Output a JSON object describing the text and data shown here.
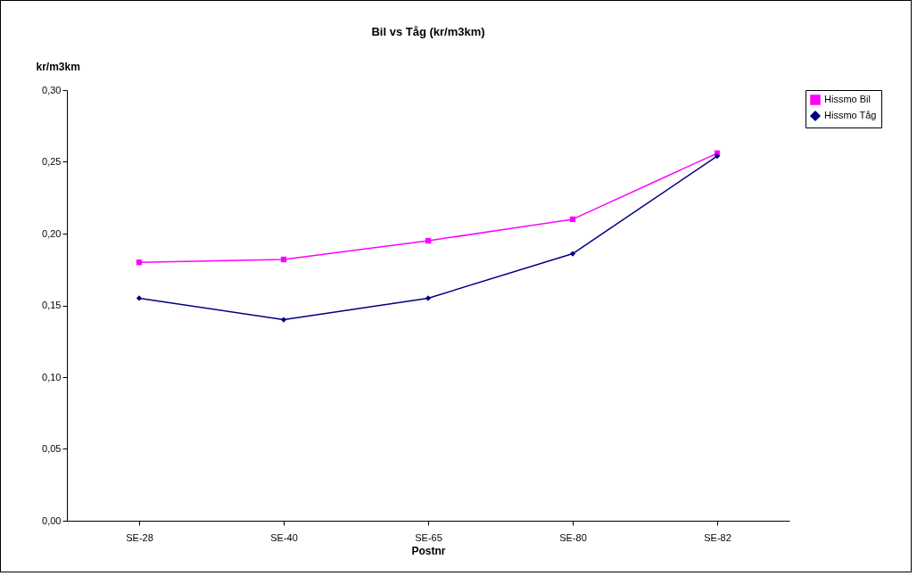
{
  "chart_data": {
    "type": "line",
    "title": "Bil vs Tåg (kr/m3km)",
    "xlabel": "Postnr",
    "ylabel": "kr/m3km",
    "categories": [
      "SE-28",
      "SE-40",
      "SE-65",
      "SE-80",
      "SE-82"
    ],
    "series": [
      {
        "name": "Hissmo Bil",
        "color": "#ff00ff",
        "marker": "square",
        "values": [
          0.18,
          0.182,
          0.195,
          0.21,
          0.256
        ]
      },
      {
        "name": "Hissmo Tåg",
        "color": "#000080",
        "marker": "diamond",
        "values": [
          0.155,
          0.14,
          0.155,
          0.186,
          0.254
        ]
      }
    ],
    "ylim": [
      0,
      0.3
    ],
    "yticks": [
      {
        "value": 0,
        "label": "0,00"
      },
      {
        "value": 0.05,
        "label": "0,05"
      },
      {
        "value": 0.1,
        "label": "0,10"
      },
      {
        "value": 0.15,
        "label": "0,15"
      },
      {
        "value": 0.2,
        "label": "0,20"
      },
      {
        "value": 0.25,
        "label": "0,25"
      },
      {
        "value": 0.3,
        "label": "0,30"
      }
    ],
    "legend": "right",
    "grid": false,
    "line_style": "solid"
  }
}
